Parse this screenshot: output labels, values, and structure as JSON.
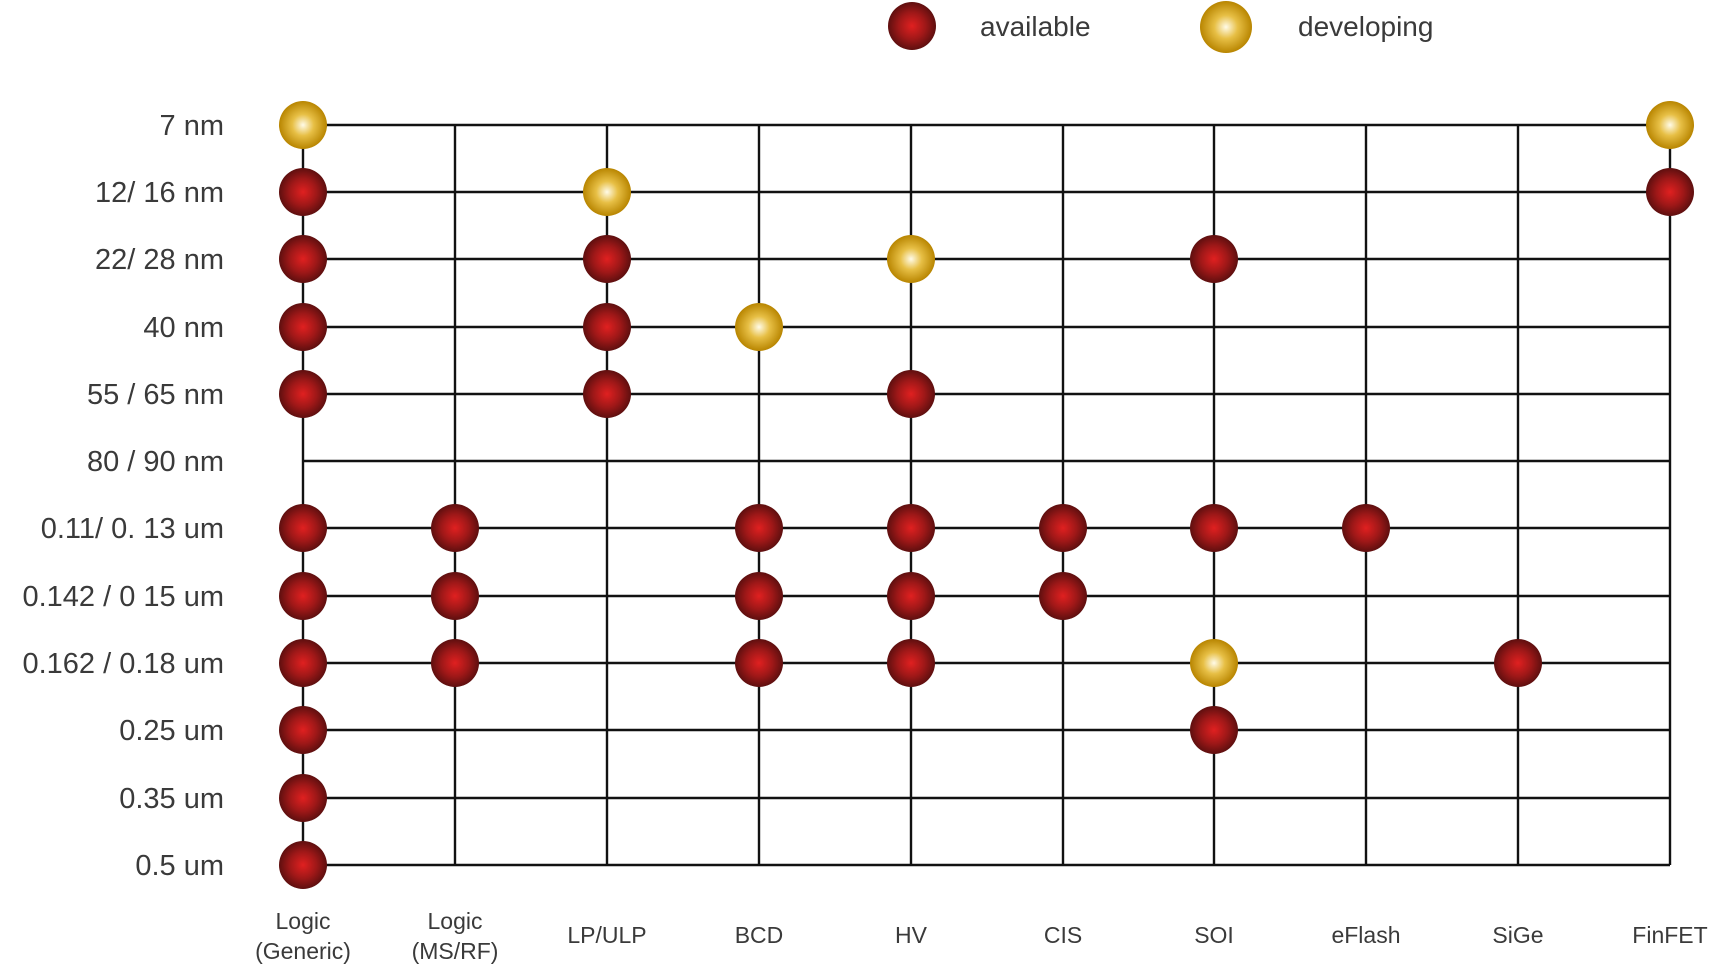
{
  "legend": {
    "available_label": "available",
    "developing_label": "developing"
  },
  "colors": {
    "available": "#8b1a1a",
    "available_core": "#d31f1f",
    "developing": "#c9950a",
    "developing_core": "#fff6d8",
    "grid": "#111111",
    "text": "#3a3a3a"
  },
  "rows": [
    "7 nm",
    "12/ 16 nm",
    "22/ 28 nm",
    "40 nm",
    "55 / 65 nm",
    "80 / 90 nm",
    "0.11/ 0. 13 um",
    "0.142 / 0 15 um",
    "0.162 / 0.18 um",
    "0.25 um",
    "0.35 um",
    "0.5 um"
  ],
  "columns": [
    [
      "Logic",
      "(Generic)"
    ],
    [
      "Logic",
      "(MS/RF)"
    ],
    [
      "LP/ULP"
    ],
    [
      "BCD"
    ],
    [
      "HV"
    ],
    [
      "CIS"
    ],
    [
      "SOI"
    ],
    [
      "eFlash"
    ],
    [
      "SiGe"
    ],
    [
      "FinFET"
    ]
  ],
  "availability": [
    {
      "column": "Logic (Generic)",
      "row": "7 nm",
      "status": "developing"
    },
    {
      "column": "Logic (Generic)",
      "row": "12/ 16 nm",
      "status": "available"
    },
    {
      "column": "Logic (Generic)",
      "row": "22/ 28 nm",
      "status": "available"
    },
    {
      "column": "Logic (Generic)",
      "row": "40 nm",
      "status": "available"
    },
    {
      "column": "Logic (Generic)",
      "row": "55 / 65 nm",
      "status": "available"
    },
    {
      "column": "Logic (Generic)",
      "row": "0.11/ 0. 13 um",
      "status": "available"
    },
    {
      "column": "Logic (Generic)",
      "row": "0.142 / 0 15 um",
      "status": "available"
    },
    {
      "column": "Logic (Generic)",
      "row": "0.162 / 0.18 um",
      "status": "available"
    },
    {
      "column": "Logic (Generic)",
      "row": "0.25 um",
      "status": "available"
    },
    {
      "column": "Logic (Generic)",
      "row": "0.35 um",
      "status": "available"
    },
    {
      "column": "Logic (Generic)",
      "row": "0.5 um",
      "status": "available"
    },
    {
      "column": "Logic (MS/RF)",
      "row": "0.11/ 0. 13 um",
      "status": "available"
    },
    {
      "column": "Logic (MS/RF)",
      "row": "0.142 / 0 15 um",
      "status": "available"
    },
    {
      "column": "Logic (MS/RF)",
      "row": "0.162 / 0.18 um",
      "status": "available"
    },
    {
      "column": "LP/ULP",
      "row": "12/ 16 nm",
      "status": "developing"
    },
    {
      "column": "LP/ULP",
      "row": "22/ 28 nm",
      "status": "available"
    },
    {
      "column": "LP/ULP",
      "row": "40 nm",
      "status": "available"
    },
    {
      "column": "LP/ULP",
      "row": "55 / 65 nm",
      "status": "available"
    },
    {
      "column": "BCD",
      "row": "40 nm",
      "status": "developing"
    },
    {
      "column": "BCD",
      "row": "0.11/ 0. 13 um",
      "status": "available"
    },
    {
      "column": "BCD",
      "row": "0.142 / 0 15 um",
      "status": "available"
    },
    {
      "column": "BCD",
      "row": "0.162 / 0.18 um",
      "status": "available"
    },
    {
      "column": "HV",
      "row": "22/ 28 nm",
      "status": "developing"
    },
    {
      "column": "HV",
      "row": "55 / 65 nm",
      "status": "available"
    },
    {
      "column": "HV",
      "row": "0.11/ 0. 13 um",
      "status": "available"
    },
    {
      "column": "HV",
      "row": "0.142 / 0 15 um",
      "status": "available"
    },
    {
      "column": "HV",
      "row": "0.162 / 0.18 um",
      "status": "available"
    },
    {
      "column": "CIS",
      "row": "0.11/ 0. 13 um",
      "status": "available"
    },
    {
      "column": "CIS",
      "row": "0.142 / 0 15 um",
      "status": "available"
    },
    {
      "column": "SOI",
      "row": "22/ 28 nm",
      "status": "available"
    },
    {
      "column": "SOI",
      "row": "0.11/ 0. 13 um",
      "status": "available"
    },
    {
      "column": "SOI",
      "row": "0.162 / 0.18 um",
      "status": "developing"
    },
    {
      "column": "SOI",
      "row": "0.25 um",
      "status": "available"
    },
    {
      "column": "eFlash",
      "row": "0.11/ 0. 13 um",
      "status": "available"
    },
    {
      "column": "SiGe",
      "row": "0.162 / 0.18 um",
      "status": "available"
    },
    {
      "column": "FinFET",
      "row": "7 nm",
      "status": "developing"
    },
    {
      "column": "FinFET",
      "row": "12/ 16 nm",
      "status": "available"
    }
  ]
}
